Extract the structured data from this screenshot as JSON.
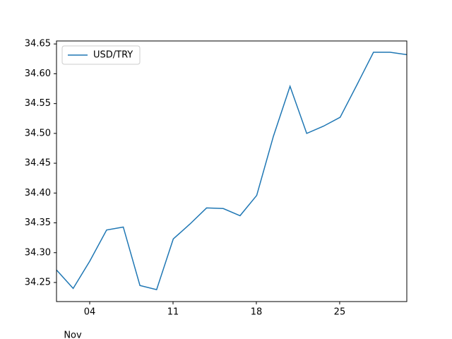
{
  "chart_data": {
    "type": "line",
    "x_label": "Nov",
    "x": [
      1.21,
      2.61,
      4.01,
      5.42,
      6.82,
      8.22,
      9.62,
      11.02,
      12.42,
      13.82,
      15.22,
      16.63,
      18.03,
      19.43,
      20.83,
      22.23,
      23.63,
      25.04,
      26.44,
      27.84,
      29.24,
      30.64
    ],
    "series": [
      {
        "name": "USD/TRY",
        "color": "#1f77b4",
        "values": [
          34.271,
          34.24,
          34.286,
          34.338,
          34.343,
          34.245,
          34.238,
          34.323,
          34.348,
          34.375,
          34.374,
          34.362,
          34.396,
          34.495,
          34.579,
          34.5,
          34.512,
          34.527,
          34.581,
          34.636,
          34.636,
          34.632
        ]
      }
    ],
    "xlim": [
      1.21,
      30.64
    ],
    "xticks": [
      {
        "value": 4,
        "label": "04"
      },
      11,
      18,
      25
    ],
    "ylim": [
      34.218,
      34.655
    ],
    "yticks": [
      34.25,
      {
        "value": 34.3,
        "label": "34.30"
      },
      34.35,
      {
        "value": 34.4,
        "label": "34.40"
      },
      34.45,
      {
        "value": 34.5,
        "label": "34.50"
      },
      34.55,
      {
        "value": 34.6,
        "label": "34.60"
      },
      34.65
    ],
    "legend": "upper left"
  }
}
